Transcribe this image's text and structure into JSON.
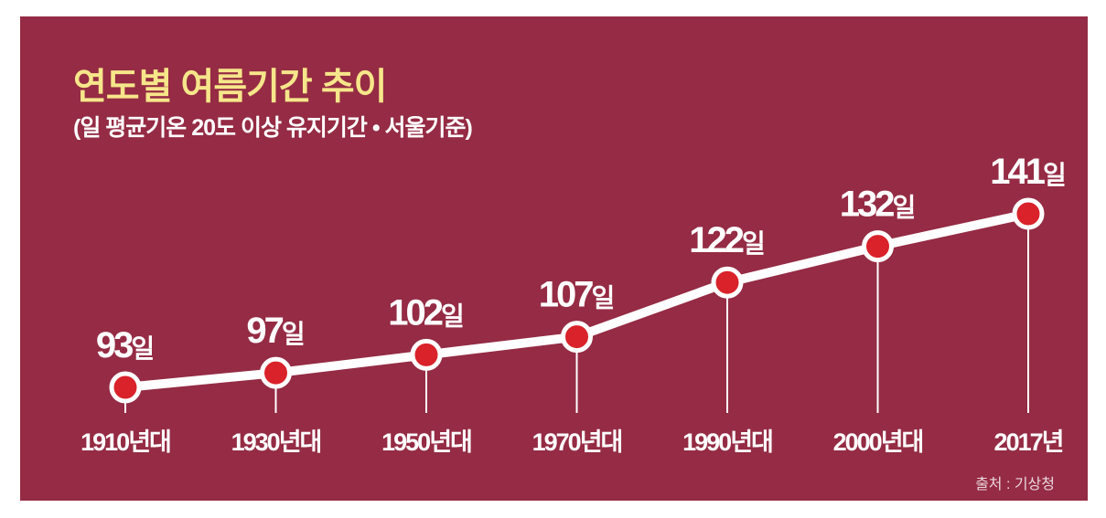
{
  "chart_data": {
    "type": "line",
    "title": "연도별 여름기간 추이",
    "subtitle": "(일 평균기온 20도 이상 유지기간 • 서울기준)",
    "categories": [
      "1910년대",
      "1930년대",
      "1950년대",
      "1970년대",
      "1990년대",
      "2000년대",
      "2017년"
    ],
    "values": [
      93,
      97,
      102,
      107,
      122,
      132,
      141
    ],
    "value_labels": [
      "93",
      "97",
      "102",
      "107",
      "122",
      "132",
      "141"
    ],
    "value_unit": "일",
    "xlabel": "",
    "ylabel": "",
    "grid": false,
    "legend": "none",
    "source": "출처 : 기상청"
  },
  "colors": {
    "background": "#952b44",
    "title": "#f6e68a",
    "line": "#ffffff",
    "marker_fill": "#d9222a",
    "text": "#ffffff"
  }
}
